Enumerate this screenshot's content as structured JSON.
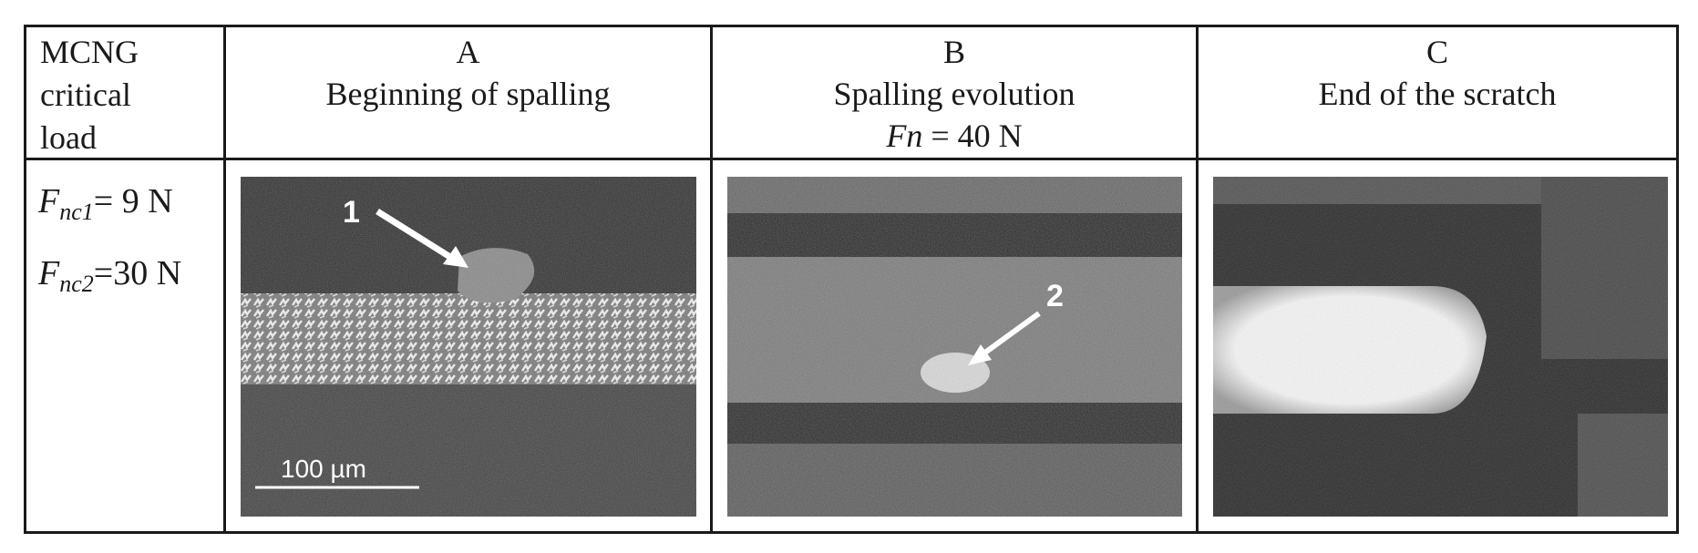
{
  "header": {
    "col0": {
      "line1": "MCNG",
      "line2": "critical",
      "line3": "load"
    },
    "colA": {
      "letter": "A",
      "caption": "Beginning of spalling"
    },
    "colB": {
      "letter": "B",
      "caption": "Spalling evolution",
      "force_symbol": "Fn",
      "force_rest": " = 40 N"
    },
    "colC": {
      "letter": "C",
      "caption": "End of the scratch"
    }
  },
  "loads": {
    "fnc1": {
      "symbol": "F",
      "sub": "nc1",
      "value": "= 9 N"
    },
    "fnc2": {
      "symbol": "F",
      "sub": "nc2",
      "value": "=30 N"
    }
  },
  "images": {
    "A": {
      "annotation": "1",
      "scalebar_label": "100 µm"
    },
    "B": {
      "annotation": "2"
    },
    "C": {}
  }
}
